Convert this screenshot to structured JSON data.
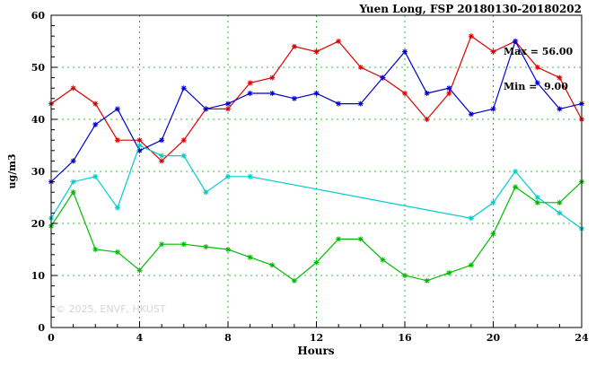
{
  "title": "Yuen Long, FSP 20180130-20180202",
  "annotations": {
    "max": "Max = 56.00",
    "min": "Min =  9.00"
  },
  "watermark": "© 2025, ENVF, HKUST",
  "chart_data": {
    "type": "line",
    "title": "Yuen Long, FSP 20180130-20180202",
    "xlabel": "Hours",
    "ylabel": "ug/m3",
    "xlim": [
      0,
      24
    ],
    "ylim": [
      0,
      60
    ],
    "xticks": [
      0,
      4,
      8,
      12,
      16,
      20,
      24
    ],
    "yticks": [
      0,
      10,
      20,
      30,
      40,
      50,
      60
    ],
    "x_minor_step": 1,
    "y_minor_step": 2,
    "grid": true,
    "grid_color": "#00aa00",
    "legend": "none",
    "marker": "asterisk",
    "stats": {
      "max": 56.0,
      "min": 9.0
    },
    "series": [
      {
        "name": "red",
        "color": "#dd0000",
        "x": [
          0,
          1,
          2,
          3,
          4,
          5,
          6,
          7,
          8,
          9,
          10,
          11,
          12,
          13,
          14,
          15,
          16,
          17,
          18,
          19,
          20,
          21,
          22,
          23,
          24
        ],
        "values": [
          43,
          46,
          43,
          36,
          36,
          32,
          36,
          42,
          42,
          47,
          48,
          54,
          53,
          55,
          50,
          48,
          45,
          40,
          45,
          56,
          53,
          55,
          50,
          48,
          40
        ]
      },
      {
        "name": "blue",
        "color": "#0000cc",
        "x": [
          0,
          1,
          2,
          3,
          4,
          5,
          6,
          7,
          8,
          9,
          10,
          11,
          12,
          13,
          14,
          15,
          16,
          17,
          18,
          19,
          20,
          21,
          22,
          23,
          24
        ],
        "values": [
          28,
          32,
          39,
          42,
          34,
          36,
          46,
          42,
          43,
          45,
          45,
          44,
          45,
          43,
          43,
          48,
          53,
          45,
          46,
          41,
          42,
          55,
          47,
          42,
          43
        ]
      },
      {
        "name": "cyan",
        "color": "#00cccc",
        "x": [
          0,
          1,
          2,
          3,
          4,
          5,
          6,
          7,
          8,
          9,
          19,
          20,
          21,
          22,
          23,
          24
        ],
        "values": [
          21,
          28,
          29,
          23,
          35,
          33,
          33,
          26,
          29,
          29,
          21,
          24,
          30,
          25,
          22,
          19
        ]
      },
      {
        "name": "green",
        "color": "#00bb00",
        "x": [
          0,
          1,
          2,
          3,
          4,
          5,
          6,
          7,
          8,
          9,
          10,
          11,
          12,
          13,
          14,
          15,
          16,
          17,
          18,
          19,
          20,
          21,
          22,
          23,
          24
        ],
        "values": [
          19.5,
          26,
          15,
          14.5,
          11,
          16,
          16,
          15.5,
          15,
          13.5,
          12,
          9,
          12.5,
          17,
          17,
          13,
          10,
          9,
          10.5,
          12,
          18,
          27,
          24,
          24,
          28
        ]
      }
    ]
  }
}
